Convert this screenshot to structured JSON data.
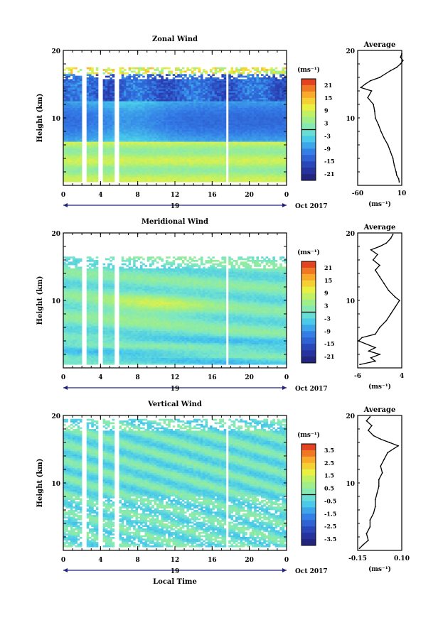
{
  "chart_data": [
    {
      "type": "heatmap",
      "title": "Zonal Wind",
      "ylabel": "Height (km)",
      "x_ticks": [
        "0",
        "4",
        "8",
        "12",
        "16",
        "20",
        "0"
      ],
      "xlim": [
        0,
        24
      ],
      "ylim": [
        0,
        20
      ],
      "y_tick_labels": [
        {
          "v": 10,
          "t": "10"
        },
        {
          "v": 20,
          "t": "20"
        }
      ],
      "date_marker": "19",
      "date_label": "Oct 2017",
      "colorbar": {
        "unit": "(ms⁻¹)",
        "ticks": [
          "21",
          "15",
          "9",
          "3",
          "-3",
          "-9",
          "-15",
          "-21"
        ],
        "range": [
          -24,
          24
        ]
      },
      "gaps_hours": [
        2.2,
        4.0,
        5.8,
        17.6
      ],
      "field": {
        "type": "zonal",
        "cutoff_km": 17.5
      },
      "profile": {
        "title": "Average",
        "xlabel": "(ms⁻¹)",
        "x_ticks": [
          "-60",
          "10"
        ],
        "xlim": [
          -60,
          10
        ],
        "ylim": [
          0,
          20
        ],
        "y_tick_labels": [
          {
            "v": 10,
            "t": "10"
          },
          {
            "v": 20,
            "t": "20"
          }
        ],
        "points": [
          [
            6,
            0.5
          ],
          [
            5,
            1
          ],
          [
            2,
            1.5
          ],
          [
            1,
            2
          ],
          [
            -2,
            3
          ],
          [
            -4,
            4
          ],
          [
            -8,
            5
          ],
          [
            -12,
            6
          ],
          [
            -18,
            7
          ],
          [
            -23,
            8
          ],
          [
            -27,
            9
          ],
          [
            -32,
            10
          ],
          [
            -33,
            11
          ],
          [
            -35,
            12
          ],
          [
            -44,
            13
          ],
          [
            -38,
            14
          ],
          [
            -55,
            14.5
          ],
          [
            -48,
            15
          ],
          [
            -40,
            15.5
          ],
          [
            -25,
            16
          ],
          [
            -8,
            17
          ],
          [
            2,
            17.5
          ],
          [
            8,
            18
          ],
          [
            12,
            18.5
          ],
          [
            8,
            19
          ],
          [
            10,
            19.5
          ]
        ]
      }
    },
    {
      "type": "heatmap",
      "title": "Meridional Wind",
      "ylabel": "Height (km)",
      "x_ticks": [
        "0",
        "4",
        "8",
        "12",
        "16",
        "20",
        "0"
      ],
      "xlim": [
        0,
        24
      ],
      "ylim": [
        0,
        20
      ],
      "y_tick_labels": [
        {
          "v": 10,
          "t": "10"
        },
        {
          "v": 20,
          "t": "20"
        }
      ],
      "date_marker": "19",
      "date_label": "Oct 2017",
      "colorbar": {
        "unit": "(ms⁻¹)",
        "ticks": [
          "21",
          "15",
          "9",
          "3",
          "-3",
          "-9",
          "-15",
          "-21"
        ],
        "range": [
          -24,
          24
        ]
      },
      "gaps_hours": [
        2.2,
        4.0,
        5.8,
        17.6
      ],
      "field": {
        "type": "meridional",
        "cutoff_km": 16.5
      },
      "profile": {
        "title": "Average",
        "xlabel": "(ms⁻¹)",
        "x_ticks": [
          "-6",
          "4"
        ],
        "xlim": [
          -6,
          4
        ],
        "ylim": [
          0,
          20
        ],
        "y_tick_labels": [
          {
            "v": 10,
            "t": "10"
          },
          {
            "v": 20,
            "t": "20"
          }
        ],
        "points": [
          [
            -5.5,
            0.5
          ],
          [
            -2,
            1
          ],
          [
            -3,
            1.5
          ],
          [
            -1,
            2
          ],
          [
            -3.5,
            2.5
          ],
          [
            -2,
            3
          ],
          [
            -5.8,
            4
          ],
          [
            -5,
            4.5
          ],
          [
            -2,
            5
          ],
          [
            -1,
            6
          ],
          [
            0.5,
            7
          ],
          [
            1.5,
            8
          ],
          [
            2.5,
            9
          ],
          [
            3.5,
            10
          ],
          [
            2.5,
            10.5
          ],
          [
            1,
            11.5
          ],
          [
            0,
            12.5
          ],
          [
            -1,
            13.5
          ],
          [
            -2,
            14.5
          ],
          [
            -1,
            15.2
          ],
          [
            -2.5,
            16
          ],
          [
            -1.5,
            16.8
          ],
          [
            -3,
            17.5
          ],
          [
            -1,
            18
          ],
          [
            0.5,
            18.5
          ],
          [
            1.5,
            19.2
          ],
          [
            2,
            19.8
          ]
        ]
      }
    },
    {
      "type": "heatmap",
      "title": "Vertical Wind",
      "ylabel": "Height (km)",
      "xlabel": "Local Time",
      "x_ticks": [
        "0",
        "4",
        "8",
        "12",
        "16",
        "20",
        "0"
      ],
      "xlim": [
        0,
        24
      ],
      "ylim": [
        0,
        20
      ],
      "y_tick_labels": [
        {
          "v": 10,
          "t": "10"
        },
        {
          "v": 20,
          "t": "20"
        }
      ],
      "date_marker": "19",
      "date_label": "Oct 2017",
      "colorbar": {
        "unit": "(ms⁻¹)",
        "ticks": [
          "3.5",
          "2.5",
          "1.5",
          "0.5",
          "-0.5",
          "-1.5",
          "-2.5",
          "-3.5"
        ],
        "range": [
          -4,
          4
        ]
      },
      "gaps_hours": [
        2.2,
        4.0,
        5.8,
        17.6
      ],
      "field": {
        "type": "vertical",
        "cutoff_km": 19.5
      },
      "profile": {
        "title": "Average",
        "xlabel": "(ms⁻¹)",
        "x_ticks": [
          "-0.15",
          "0.10"
        ],
        "xlim": [
          -0.15,
          0.1
        ],
        "ylim": [
          0,
          20
        ],
        "y_tick_labels": [
          {
            "v": 10,
            "t": "10"
          },
          {
            "v": 20,
            "t": "20"
          }
        ],
        "points": [
          [
            -0.14,
            0.3
          ],
          [
            -0.12,
            0.8
          ],
          [
            -0.09,
            1.5
          ],
          [
            -0.1,
            2.5
          ],
          [
            -0.08,
            3.5
          ],
          [
            -0.08,
            4.5
          ],
          [
            -0.06,
            5.5
          ],
          [
            -0.05,
            6.5
          ],
          [
            -0.05,
            7.5
          ],
          [
            -0.04,
            8.5
          ],
          [
            -0.03,
            9.5
          ],
          [
            -0.03,
            10.5
          ],
          [
            -0.01,
            11.5
          ],
          [
            -0.02,
            12.5
          ],
          [
            0.0,
            13.5
          ],
          [
            0.02,
            14.5
          ],
          [
            0.08,
            15.5
          ],
          [
            0.03,
            16
          ],
          [
            -0.02,
            16.5
          ],
          [
            -0.06,
            17
          ],
          [
            -0.09,
            17.8
          ],
          [
            -0.07,
            18.5
          ],
          [
            -0.1,
            19.2
          ],
          [
            -0.08,
            19.8
          ]
        ]
      }
    }
  ]
}
